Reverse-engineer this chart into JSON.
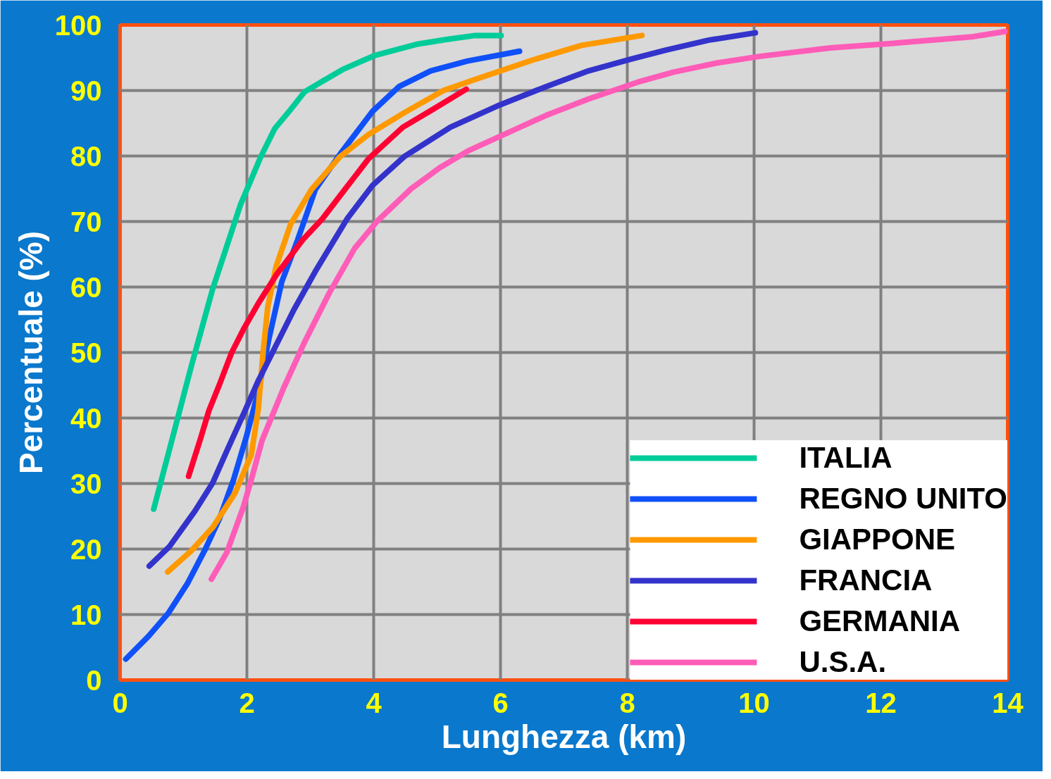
{
  "chart_data": {
    "type": "line",
    "xlabel": "Lunghezza (km)",
    "ylabel": "Percentuale (%)",
    "xlim": [
      0,
      14
    ],
    "ylim": [
      0,
      100
    ],
    "xticks": [
      0,
      2,
      4,
      6,
      8,
      10,
      12,
      14
    ],
    "yticks": [
      0,
      10,
      20,
      30,
      40,
      50,
      60,
      70,
      80,
      90,
      100
    ],
    "grid": true,
    "legend": "bottom right",
    "marker": "none",
    "line_style": "solid",
    "series": [
      {
        "name": "ITALIA",
        "color": "#00cc99",
        "x": [
          0.53,
          0.8,
          1.12,
          1.46,
          1.9,
          2.22,
          2.44,
          2.69,
          2.91,
          3.19,
          3.53,
          4.03,
          4.7,
          5.15,
          5.6,
          6.01
        ],
        "values": [
          26.1,
          36,
          47.8,
          59.7,
          72.6,
          79.9,
          84.2,
          87.1,
          89.8,
          91.4,
          93.3,
          95.4,
          97.1,
          97.8,
          98.4,
          98.4
        ]
      },
      {
        "name": "REGNO UNITO",
        "color": "#1050f8",
        "x": [
          0.09,
          0.45,
          0.76,
          1.06,
          1.34,
          1.57,
          1.79,
          1.99,
          2.18,
          2.35,
          2.55,
          2.8,
          3.08,
          3.47,
          3.98,
          4.4,
          4.9,
          5.48,
          6.3
        ],
        "values": [
          3.2,
          6.7,
          10.2,
          14.7,
          19.9,
          24.7,
          30.6,
          37.1,
          44.1,
          52.2,
          60.8,
          67.2,
          74.9,
          80.3,
          86.8,
          90.6,
          93.0,
          94.5,
          96.0
        ]
      },
      {
        "name": "GIAPPONE",
        "color": "#ff9900",
        "x": [
          0.75,
          1.12,
          1.46,
          1.81,
          2.07,
          2.18,
          2.26,
          2.33,
          2.46,
          2.69,
          3.02,
          3.47,
          3.92,
          4.48,
          5.1,
          5.6,
          6.49,
          7.28,
          8.23
        ],
        "values": [
          16.5,
          19.7,
          23.3,
          28.5,
          34.4,
          41.4,
          50.5,
          57.0,
          63.1,
          69.6,
          74.9,
          79.9,
          83.3,
          86.6,
          90.0,
          91.7,
          94.6,
          96.9,
          98.4
        ]
      },
      {
        "name": "FRANCIA",
        "color": "#3333cc",
        "x": [
          0.46,
          0.78,
          1.18,
          1.46,
          1.68,
          1.96,
          2.18,
          2.46,
          2.74,
          3.08,
          3.58,
          3.98,
          4.48,
          5.21,
          5.99,
          6.72,
          7.39,
          8.06,
          8.62,
          9.29,
          10.02
        ],
        "values": [
          17.4,
          20.4,
          25.8,
          30.1,
          34.9,
          40.9,
          45.7,
          51.1,
          56.5,
          62.4,
          70.4,
          75.5,
          79.9,
          84.4,
          87.8,
          90.6,
          93.0,
          94.8,
          96.2,
          97.7,
          98.8
        ]
      },
      {
        "name": "GERMANIA",
        "color": "#ff0033",
        "x": [
          1.08,
          1.27,
          1.4,
          1.57,
          1.76,
          1.96,
          2.18,
          2.46,
          2.88,
          3.19,
          3.53,
          3.92,
          4.46,
          4.93,
          5.46
        ],
        "values": [
          31.1,
          36.9,
          41.1,
          45.2,
          50.0,
          53.8,
          57.5,
          61.8,
          67.2,
          70.4,
          74.7,
          79.6,
          84.4,
          87.1,
          90.2
        ]
      },
      {
        "name": "U.S.A.",
        "color": "#ff5cb8",
        "x": [
          1.44,
          1.68,
          1.94,
          2.07,
          2.24,
          2.58,
          2.91,
          3.3,
          3.7,
          4.05,
          4.59,
          5.04,
          5.49,
          5.99,
          6.72,
          7.39,
          8.17,
          8.73,
          9.41,
          10.08,
          11.2,
          12.32,
          13.44,
          13.96
        ],
        "values": [
          15.4,
          19.4,
          26.3,
          30.6,
          36.6,
          44.6,
          51.6,
          59.1,
          65.9,
          70.0,
          75.0,
          78.2,
          80.8,
          83.0,
          86.2,
          88.7,
          91.3,
          92.8,
          94.2,
          95.2,
          96.5,
          97.3,
          98.2,
          99.0
        ]
      }
    ]
  }
}
